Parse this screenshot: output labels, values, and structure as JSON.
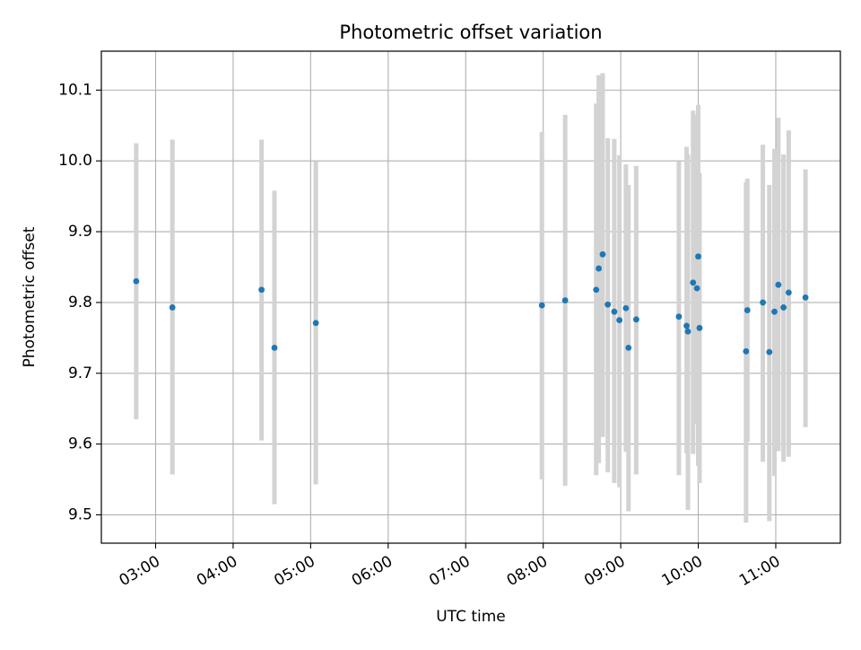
{
  "chart_data": {
    "type": "scatter",
    "title": "Photometric offset variation",
    "xlabel": "UTC time",
    "ylabel": "Photometric offset",
    "x_format": "HH:MM",
    "xlim": [
      "02:18",
      "11:50"
    ],
    "ylim": [
      9.46,
      10.155
    ],
    "grid": true,
    "legend": "none",
    "xticks": [
      "03:00",
      "04:00",
      "05:00",
      "06:00",
      "07:00",
      "08:00",
      "09:00",
      "10:00",
      "11:00"
    ],
    "yticks": [
      "9.5",
      "9.6",
      "9.7",
      "9.8",
      "9.9",
      "10.0",
      "10.1"
    ],
    "colors": {
      "point": "#1f77b4",
      "errorbar": "#d3d3d3",
      "grid": "#b0b0b0",
      "axes": "#000000"
    },
    "series": [
      {
        "x": [
          "02:45",
          "03:13",
          "04:22",
          "04:32",
          "05:04",
          "07:59",
          "08:17",
          "08:41",
          "08:43",
          "08:46",
          "08:50",
          "08:55",
          "08:59",
          "09:04",
          "09:06",
          "09:12",
          "09:45",
          "09:51",
          "09:52",
          "09:56",
          "09:59",
          "10:00",
          "10:01",
          "10:37",
          "10:38",
          "10:50",
          "10:55",
          "10:59",
          "11:02",
          "11:06",
          "11:10",
          "11:23"
        ],
        "y": [
          9.83,
          9.793,
          9.818,
          9.736,
          9.771,
          9.796,
          9.803,
          9.818,
          9.848,
          9.868,
          9.797,
          9.787,
          9.775,
          9.792,
          9.736,
          9.776,
          9.78,
          9.767,
          9.759,
          9.828,
          9.82,
          9.865,
          9.764,
          9.731,
          9.789,
          9.8,
          9.73,
          9.787,
          9.825,
          9.793,
          9.814,
          9.807
        ],
        "yerr_low": [
          9.635,
          9.557,
          9.605,
          9.515,
          9.543,
          9.55,
          9.541,
          9.556,
          9.573,
          9.61,
          9.56,
          9.545,
          9.539,
          9.589,
          9.505,
          9.557,
          9.556,
          9.587,
          9.507,
          9.586,
          9.628,
          9.569,
          9.545,
          9.489,
          9.603,
          9.575,
          9.491,
          9.555,
          9.59,
          9.575,
          9.582,
          9.624
        ],
        "yerr_high": [
          10.025,
          10.03,
          10.03,
          9.958,
          9.999,
          10.041,
          10.065,
          10.081,
          10.121,
          10.124,
          10.032,
          10.031,
          10.008,
          9.995,
          9.966,
          9.993,
          9.999,
          10.02,
          10.009,
          10.071,
          10.065,
          10.079,
          9.983,
          9.97,
          9.975,
          10.023,
          9.966,
          10.017,
          10.061,
          10.009,
          10.043,
          9.988
        ]
      }
    ]
  }
}
